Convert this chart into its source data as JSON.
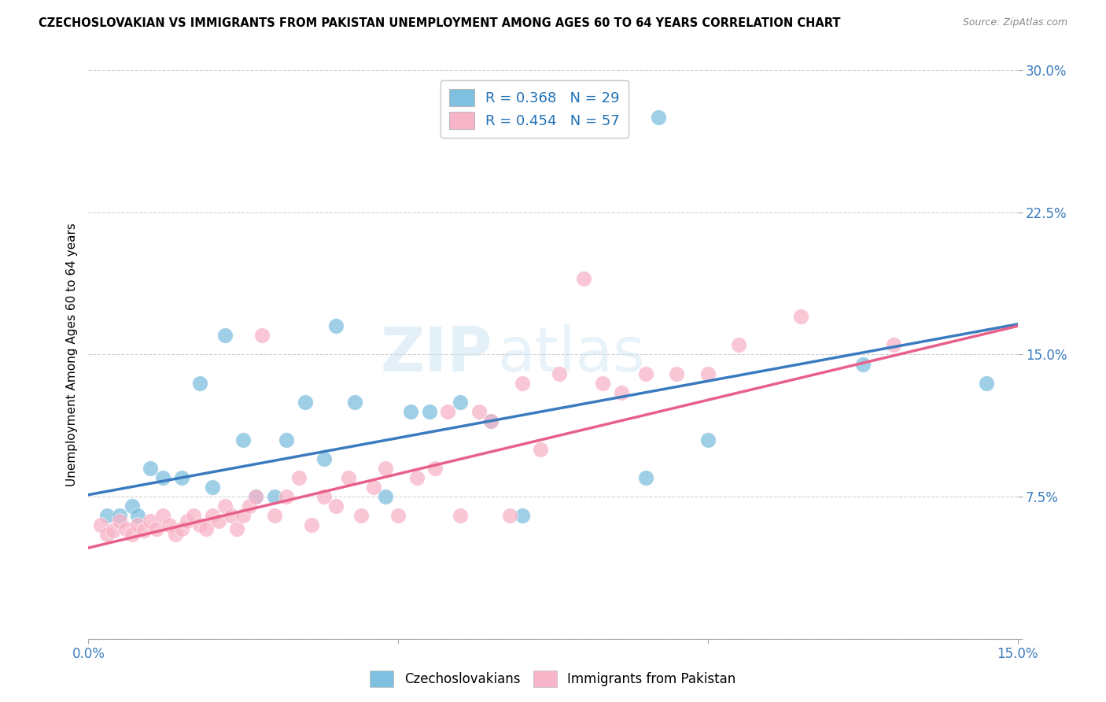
{
  "title": "CZECHOSLOVAKIAN VS IMMIGRANTS FROM PAKISTAN UNEMPLOYMENT AMONG AGES 60 TO 64 YEARS CORRELATION CHART",
  "source": "Source: ZipAtlas.com",
  "ylabel": "Unemployment Among Ages 60 to 64 years",
  "xlim": [
    0,
    0.15
  ],
  "ylim": [
    0,
    0.3
  ],
  "xticks": [
    0.0,
    0.05,
    0.1,
    0.15
  ],
  "xticklabels": [
    "0.0%",
    "",
    "",
    "15.0%"
  ],
  "yticks": [
    0.0,
    0.075,
    0.15,
    0.225,
    0.3
  ],
  "yticklabels": [
    "",
    "7.5%",
    "15.0%",
    "22.5%",
    "30.0%"
  ],
  "legend1_label": "R = 0.368   N = 29",
  "legend2_label": "R = 0.454   N = 57",
  "legend_bottom_label1": "Czechoslovakians",
  "legend_bottom_label2": "Immigrants from Pakistan",
  "blue_color": "#7fbfdf",
  "pink_color": "#f8b4c8",
  "blue_line_color": "#3a7bbf",
  "pink_line_color": "#e8608a",
  "watermark_ZIP": "ZIP",
  "watermark_atlas": "atlas",
  "blue_R": 0.368,
  "blue_N": 29,
  "pink_R": 0.454,
  "pink_N": 57,
  "blue_scatter_x": [
    0.003,
    0.005,
    0.007,
    0.008,
    0.01,
    0.012,
    0.015,
    0.018,
    0.02,
    0.022,
    0.025,
    0.027,
    0.03,
    0.032,
    0.035,
    0.038,
    0.04,
    0.043,
    0.048,
    0.052,
    0.055,
    0.06,
    0.065,
    0.07,
    0.09,
    0.092,
    0.1,
    0.125,
    0.145
  ],
  "blue_scatter_y": [
    0.065,
    0.065,
    0.07,
    0.065,
    0.09,
    0.085,
    0.085,
    0.135,
    0.08,
    0.16,
    0.105,
    0.075,
    0.075,
    0.105,
    0.125,
    0.095,
    0.165,
    0.125,
    0.075,
    0.12,
    0.12,
    0.125,
    0.115,
    0.065,
    0.085,
    0.275,
    0.105,
    0.145,
    0.135
  ],
  "pink_scatter_x": [
    0.002,
    0.003,
    0.004,
    0.005,
    0.006,
    0.007,
    0.008,
    0.009,
    0.01,
    0.011,
    0.012,
    0.013,
    0.014,
    0.015,
    0.016,
    0.017,
    0.018,
    0.019,
    0.02,
    0.021,
    0.022,
    0.023,
    0.024,
    0.025,
    0.026,
    0.027,
    0.028,
    0.03,
    0.032,
    0.034,
    0.036,
    0.038,
    0.04,
    0.042,
    0.044,
    0.046,
    0.048,
    0.05,
    0.053,
    0.056,
    0.058,
    0.06,
    0.063,
    0.065,
    0.068,
    0.07,
    0.073,
    0.076,
    0.08,
    0.083,
    0.086,
    0.09,
    0.095,
    0.1,
    0.105,
    0.115,
    0.13
  ],
  "pink_scatter_y": [
    0.06,
    0.055,
    0.057,
    0.062,
    0.058,
    0.055,
    0.06,
    0.057,
    0.062,
    0.058,
    0.065,
    0.06,
    0.055,
    0.058,
    0.062,
    0.065,
    0.06,
    0.058,
    0.065,
    0.062,
    0.07,
    0.065,
    0.058,
    0.065,
    0.07,
    0.075,
    0.16,
    0.065,
    0.075,
    0.085,
    0.06,
    0.075,
    0.07,
    0.085,
    0.065,
    0.08,
    0.09,
    0.065,
    0.085,
    0.09,
    0.12,
    0.065,
    0.12,
    0.115,
    0.065,
    0.135,
    0.1,
    0.14,
    0.19,
    0.135,
    0.13,
    0.14,
    0.14,
    0.14,
    0.155,
    0.17,
    0.155
  ],
  "background_color": "#ffffff",
  "grid_color": "#cccccc",
  "blue_intercept": 0.076,
  "blue_slope": 0.6,
  "pink_intercept": 0.048,
  "pink_slope": 0.78
}
